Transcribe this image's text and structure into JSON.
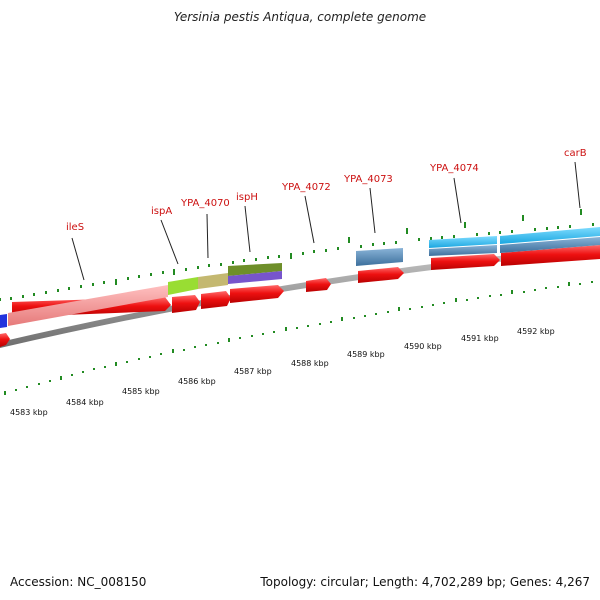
{
  "title": "Yersinia pestis Antiqua, complete genome",
  "accession_text": "Accession: NC_008150",
  "summary_text": "Topology: circular; Length: 4,702,289 bp; Genes: 4,267",
  "colors": {
    "forward_cds": "#ee1111",
    "backbone": "#8c8c8c",
    "tick": "#228b22",
    "label": "#cc1111",
    "blue_gene": "#2233dd",
    "pink_gene": "#f08a8a",
    "lime_gene": "#99dd33",
    "khaki_gene": "#c4b870",
    "olive_gene": "#6e8f2a",
    "purple_gene": "#7755cc",
    "steel_gene": "#4a82b4",
    "sky_gene": "#22b8ee"
  },
  "gene_labels": [
    "ileS",
    "ispA",
    "YPA_4070",
    "ispH",
    "YPA_4072",
    "YPA_4073",
    "YPA_4074",
    "carB"
  ],
  "kbp_labels": [
    "4583 kbp",
    "4584 kbp",
    "4585 kbp",
    "4586 kbp",
    "4587 kbp",
    "4588 kbp",
    "4589 kbp",
    "4590 kbp",
    "4591 kbp",
    "4592 kbp"
  ]
}
